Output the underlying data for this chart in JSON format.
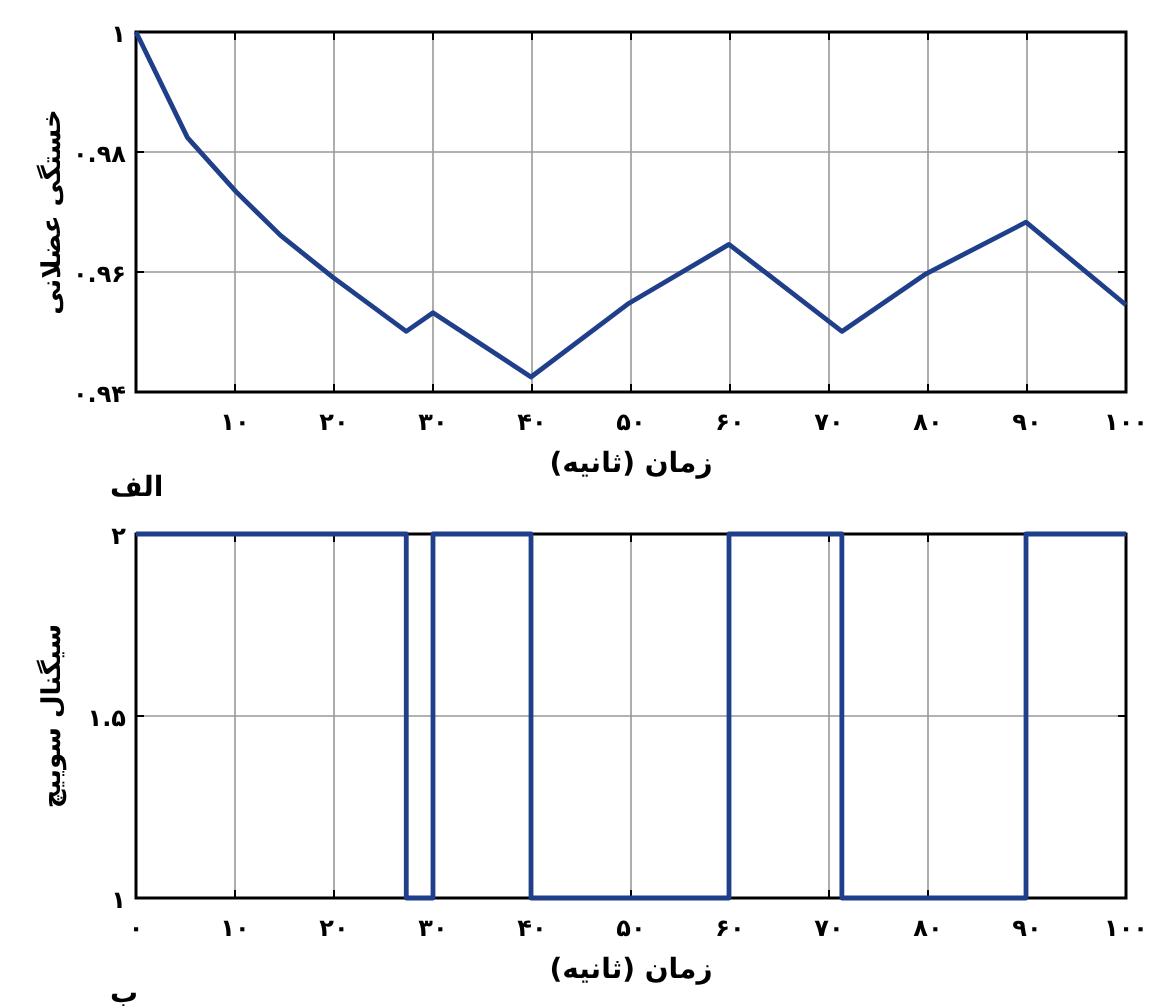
{
  "chart_data": [
    {
      "type": "line",
      "ylabel": "خستگی عضلانی",
      "xlabel": "زمان (ثانیه)",
      "annotations": [
        "الف"
      ],
      "grid": true,
      "xlim": [
        0,
        100
      ],
      "ylim": [
        0.94,
        1
      ],
      "xticks": [
        {
          "value": 0,
          "label": null
        },
        {
          "value": 10,
          "label": "۱۰"
        },
        {
          "value": 20,
          "label": "۲۰"
        },
        {
          "value": 30,
          "label": "۳۰"
        },
        {
          "value": 40,
          "label": "۴۰"
        },
        {
          "value": 50,
          "label": "۵۰"
        },
        {
          "value": 60,
          "label": "۶۰"
        },
        {
          "value": 70,
          "label": "۷۰"
        },
        {
          "value": 80,
          "label": "۸۰"
        },
        {
          "value": 90,
          "label": "۹۰"
        },
        {
          "value": 100,
          "label": "۱۰۰"
        }
      ],
      "yticks": [
        {
          "value": 0.94,
          "label": "۰.۹۴"
        },
        {
          "value": 0.96,
          "label": "۰.۹۶"
        },
        {
          "value": 0.98,
          "label": "۰.۹۸"
        },
        {
          "value": 1,
          "label": "۱"
        }
      ],
      "series": [
        {
          "color": "#1f3f8a",
          "x": [
            0,
            5.2,
            10.1,
            14.6,
            19.9,
            27.3,
            30,
            39.9,
            49.8,
            59.9,
            71.3,
            79.8,
            89.9,
            100
          ],
          "values": [
            1.0,
            0.9824,
            0.9734,
            0.9661,
            0.9591,
            0.9501,
            0.9532,
            0.9425,
            0.9548,
            0.9646,
            0.9501,
            0.9597,
            0.9683,
            0.9545
          ]
        }
      ]
    },
    {
      "type": "step",
      "ylabel": "سیگنال سوییچ",
      "xlabel": "زمان (ثانیه)",
      "annotations": [
        "ب"
      ],
      "grid": true,
      "xlim": [
        0,
        100
      ],
      "ylim": [
        1,
        2
      ],
      "xticks": [
        {
          "value": 0,
          "label": "۰"
        },
        {
          "value": 10,
          "label": "۱۰"
        },
        {
          "value": 20,
          "label": "۲۰"
        },
        {
          "value": 30,
          "label": "۳۰"
        },
        {
          "value": 40,
          "label": "۴۰"
        },
        {
          "value": 50,
          "label": "۵۰"
        },
        {
          "value": 60,
          "label": "۶۰"
        },
        {
          "value": 70,
          "label": "۷۰"
        },
        {
          "value": 80,
          "label": "۸۰"
        },
        {
          "value": 90,
          "label": "۹۰"
        },
        {
          "value": 100,
          "label": "۱۰۰"
        }
      ],
      "yticks": [
        {
          "value": 1,
          "label": "۱"
        },
        {
          "value": 1.5,
          "label": "۱.۵"
        },
        {
          "value": 2,
          "label": "۲"
        }
      ],
      "series": [
        {
          "color": "#1f3f8a",
          "x": [
            0,
            27.3,
            30,
            39.9,
            59.9,
            71.3,
            89.9,
            100
          ],
          "values": [
            2,
            1,
            2,
            1,
            2,
            1,
            2,
            2
          ]
        }
      ]
    }
  ]
}
